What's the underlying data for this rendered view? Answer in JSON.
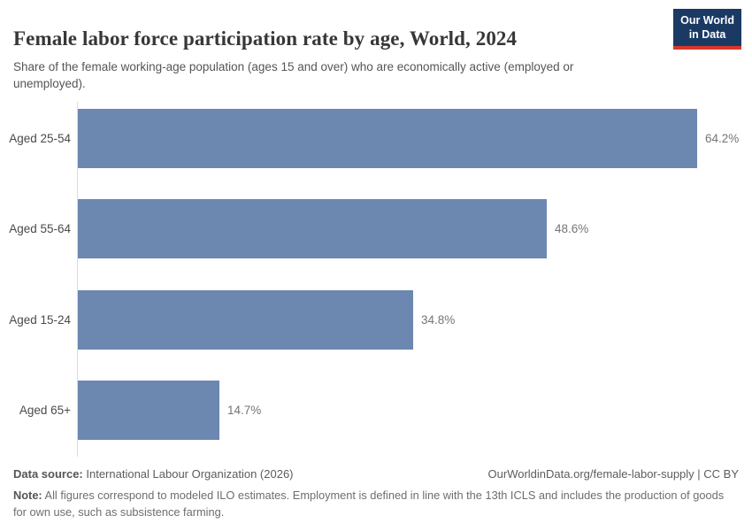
{
  "header": {
    "title": "Female labor force participation rate by age, World, 2024",
    "subtitle": "Share of the female working-age population (ages 15 and over) who are economically active (employed or unemployed).",
    "logo": {
      "line1": "Our World",
      "line2": "in Data",
      "bg_color": "#1a3a63",
      "accent_color": "#da362a"
    }
  },
  "chart_data": {
    "type": "bar",
    "orientation": "horizontal",
    "title": "Female labor force participation rate by age, World, 2024",
    "categories": [
      "Aged 25-54",
      "Aged 55-64",
      "Aged 15-24",
      "Aged 65+"
    ],
    "values": [
      64.2,
      48.6,
      34.8,
      14.7
    ],
    "value_labels": [
      "64.2%",
      "48.6%",
      "34.8%",
      "14.7%"
    ],
    "unit": "%",
    "bar_color": "#6c87b0",
    "axis_color": "#dbdbdb",
    "xlim": [
      0,
      68
    ],
    "grid": false,
    "legend": "none"
  },
  "footer": {
    "datasource_label": "Data source:",
    "datasource_value": " International Labour Organization (2026)",
    "link_text": "OurWorldinData.org/female-labor-supply | CC BY",
    "note_label": "Note:",
    "note_text": " All figures correspond to modeled ILO estimates. Employment is defined in line with the 13th ICLS and includes the production of goods for own use, such as subsistence farming."
  }
}
